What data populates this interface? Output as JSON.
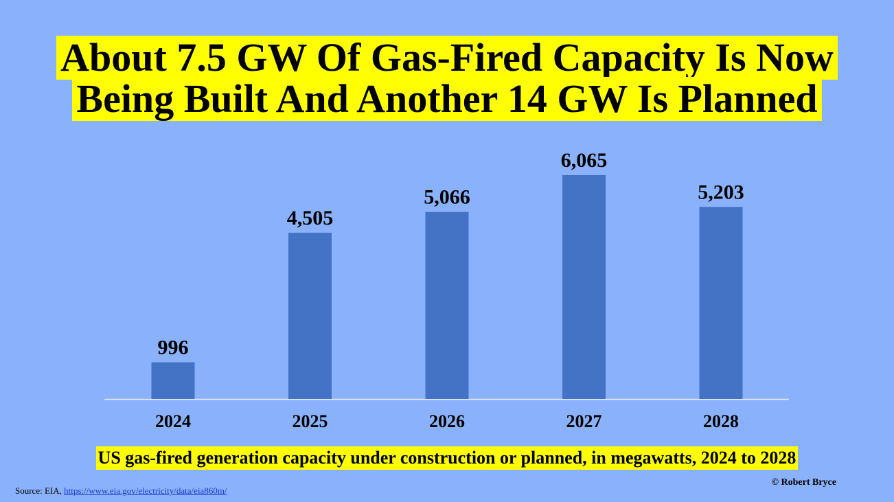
{
  "title": {
    "line1": "About 7.5 GW Of Gas-Fired Capacity Is Now",
    "line2": "Being Built And Another 14 GW Is Planned"
  },
  "subtitle": "US gas-fired generation capacity under construction or planned, in megawatts, 2024 to 2028",
  "copyright": "© Robert Bryce",
  "source": {
    "prefix": "Source: EIA,",
    "link_text": "https://www.eia.gov/electricity/data/eia860m/"
  },
  "colors": {
    "background": "#8ab1fb",
    "highlight": "#ffff00",
    "bar": "#4472c4",
    "baseline": "#e6ecf5"
  },
  "chart_data": {
    "type": "bar",
    "categories": [
      "2024",
      "2025",
      "2026",
      "2027",
      "2028"
    ],
    "values": [
      996,
      4505,
      5066,
      6065,
      5203
    ],
    "data_labels": [
      "996",
      "4,505",
      "5,066",
      "6,065",
      "5,203"
    ],
    "ylim": [
      0,
      6065
    ],
    "grid": false,
    "legend": "none"
  }
}
